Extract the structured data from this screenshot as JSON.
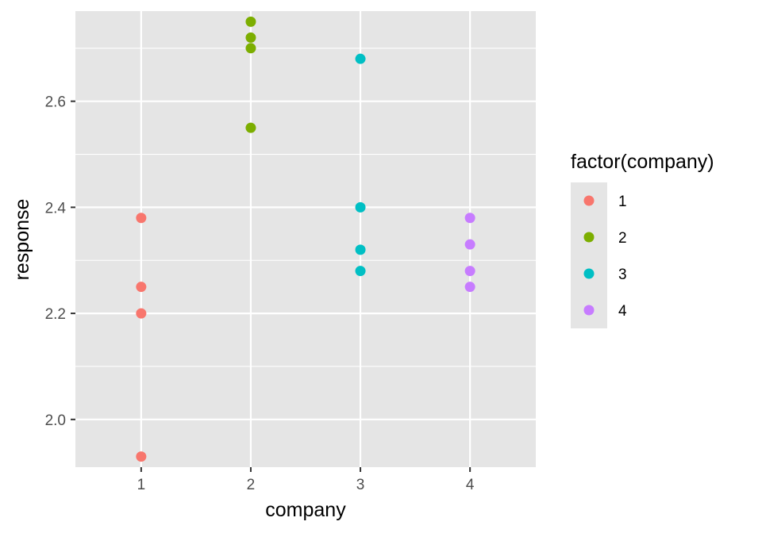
{
  "chart_data": {
    "type": "scatter",
    "title": "",
    "xlabel": "company",
    "ylabel": "response",
    "x_categories": [
      "1",
      "2",
      "3",
      "4"
    ],
    "y_ticks": [
      "2.0",
      "2.2",
      "2.4",
      "2.6"
    ],
    "ylim": [
      1.91,
      2.77
    ],
    "grid": true,
    "legend": {
      "title": "factor(company)",
      "placement": "right",
      "entries": [
        "1",
        "2",
        "3",
        "4"
      ]
    },
    "colors": {
      "1": "#F8766D",
      "2": "#7CAE00",
      "3": "#00BFC4",
      "4": "#C77CFF",
      "panel_bg": "#E5E5E5",
      "grid": "#FFFFFF"
    },
    "series": [
      {
        "name": "1",
        "x": [
          "1",
          "1",
          "1",
          "1"
        ],
        "y": [
          2.38,
          2.25,
          2.2,
          1.93
        ]
      },
      {
        "name": "2",
        "x": [
          "2",
          "2",
          "2",
          "2"
        ],
        "y": [
          2.75,
          2.72,
          2.7,
          2.55
        ]
      },
      {
        "name": "3",
        "x": [
          "3",
          "3",
          "3",
          "3"
        ],
        "y": [
          2.68,
          2.4,
          2.32,
          2.28
        ]
      },
      {
        "name": "4",
        "x": [
          "4",
          "4",
          "4",
          "4"
        ],
        "y": [
          2.38,
          2.33,
          2.28,
          2.25
        ]
      }
    ]
  }
}
